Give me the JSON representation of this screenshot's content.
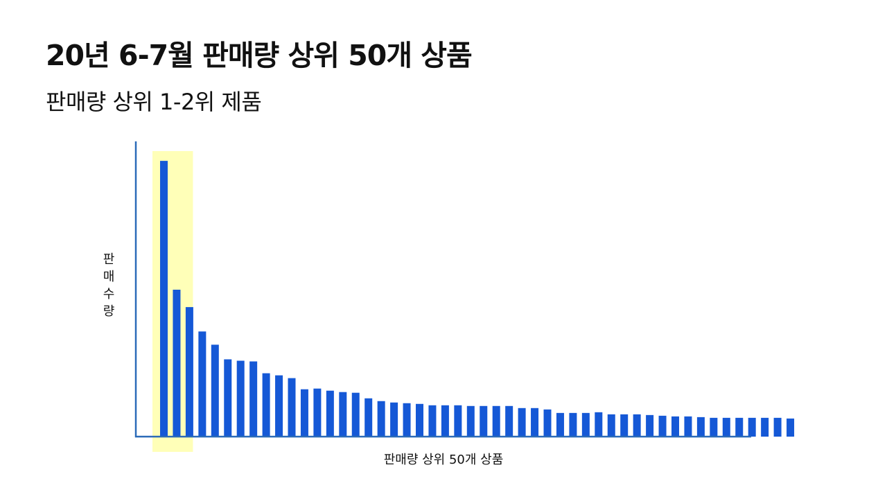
{
  "header": {
    "title": "20년 6-7월 판매량 상위 50개 상품",
    "subtitle": "판매량 상위 1-2위 제품"
  },
  "colors": {
    "bar": "#1558d6",
    "axis": "#2a6ab8",
    "highlight": "#ffffb8",
    "text": "#111111"
  },
  "chart_data": {
    "type": "bar",
    "xlabel": "판매량 상위 50개 상품",
    "ylabel": "판매수량",
    "grid": false,
    "highlight_categories": [
      1,
      2
    ],
    "values": [
      396,
      211,
      186,
      151,
      132,
      111,
      109,
      108,
      91,
      88,
      84,
      68,
      69,
      66,
      64,
      63,
      55,
      51,
      49,
      48,
      47,
      45,
      45,
      45,
      44,
      44,
      44,
      44,
      41,
      41,
      39,
      34,
      34,
      34,
      35,
      32,
      32,
      32,
      31,
      30,
      29,
      29,
      28,
      27,
      27,
      27,
      27,
      27,
      27,
      26
    ],
    "ylim": [
      0,
      420
    ]
  }
}
